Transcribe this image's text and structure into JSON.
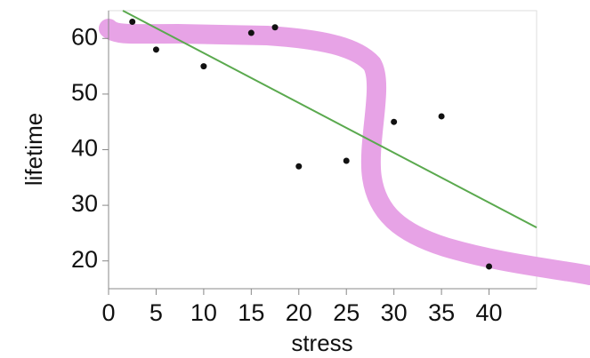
{
  "chart_data": {
    "type": "scatter",
    "x_label": "stress",
    "y_label": "lifetime",
    "x": [
      2.5,
      5,
      10,
      15,
      17.5,
      20,
      25,
      30,
      35,
      40
    ],
    "values": [
      63,
      58,
      55,
      61,
      62,
      37,
      38,
      45,
      46,
      19
    ],
    "color": "#111111",
    "fit": {
      "x": [
        1.5,
        45
      ],
      "values": [
        65,
        26
      ],
      "color": "#5aa94e"
    },
    "xlim": [
      0,
      45
    ],
    "xticks": [
      0,
      5,
      10,
      15,
      20,
      25,
      30,
      35,
      40
    ],
    "ylim": [
      15,
      65
    ],
    "yticks": [
      20,
      30,
      40,
      50,
      60
    ]
  }
}
